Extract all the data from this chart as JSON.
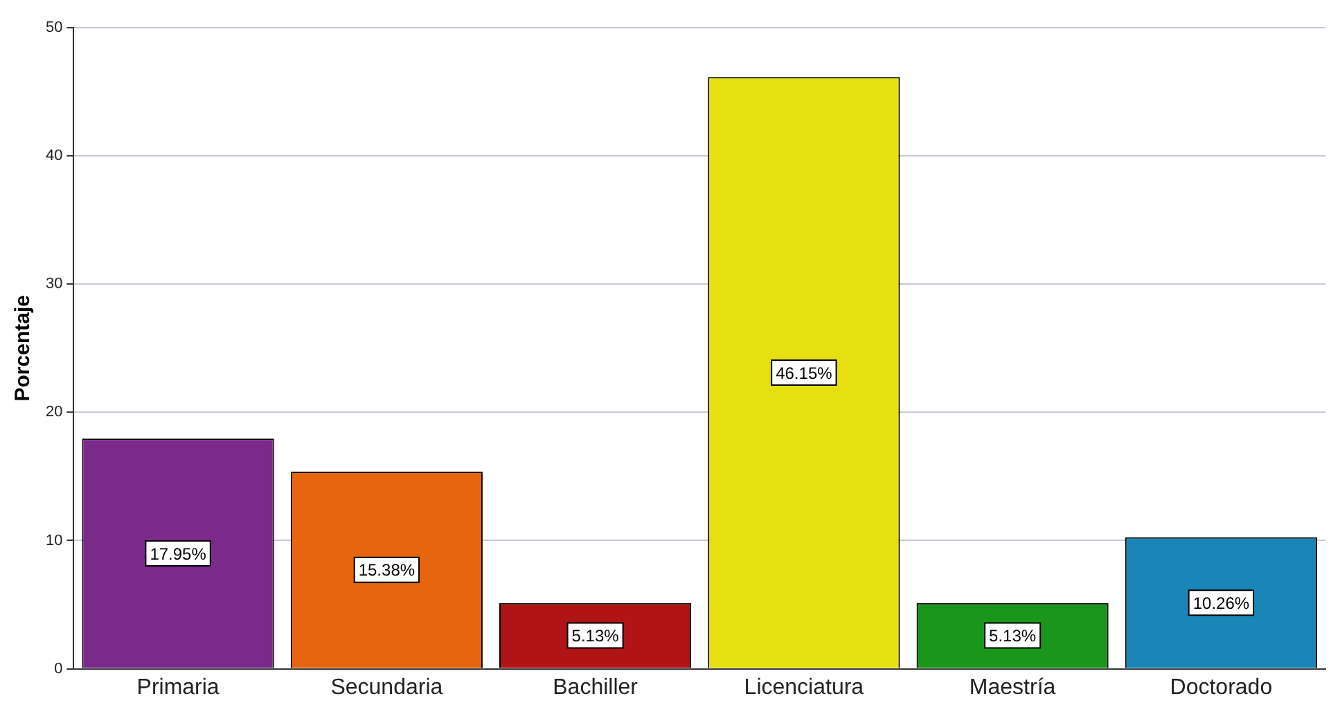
{
  "chart_data": {
    "type": "bar",
    "ylabel": "Porcentaje",
    "categories": [
      "Primaria",
      "Secundaria",
      "Bachiller",
      "Licenciatura",
      "Maestría",
      "Doctorado"
    ],
    "values": [
      17.95,
      15.38,
      5.13,
      46.15,
      5.13,
      10.26
    ],
    "colors": [
      "#7b2a8c",
      "#e8650f",
      "#b01414",
      "#e6e012",
      "#1a961a",
      "#1a86b8"
    ],
    "value_labels": [
      "17.95%",
      "15.38%",
      "5.13%",
      "46.15%",
      "5.13%",
      "10.26%"
    ],
    "ylim": [
      0,
      50
    ],
    "yticks": [
      0,
      10,
      20,
      30,
      40,
      50
    ],
    "grid": "y",
    "legend": false
  }
}
